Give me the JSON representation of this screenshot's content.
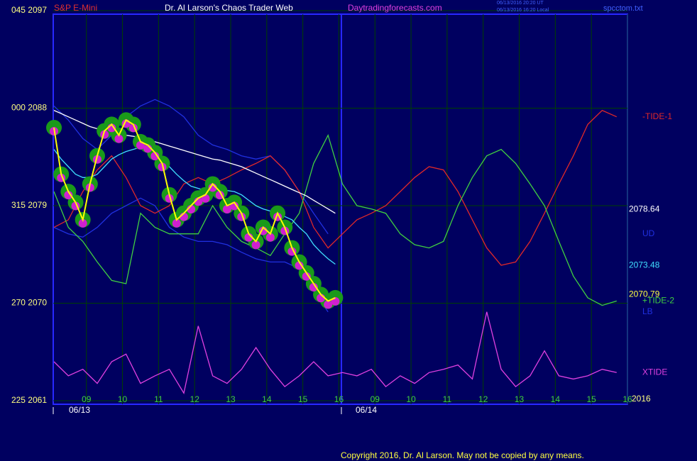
{
  "header": {
    "instrument": "S&P E-Mini",
    "title": "Dr. Al Larson's Chaos Trader Web",
    "site": "Daytradingforecasts.com",
    "time_ut": "06/13/2016 20:20 UT",
    "time_local": "06/13/2016 16:20 Local",
    "file": "spcctom.txt"
  },
  "footer": "Copyright 2016, Dr. Al Larson. May not be copied by any means.",
  "chart_data": {
    "type": "line",
    "grid": true,
    "xlim": [
      8.08,
      24.0
    ],
    "ylim": [
      2061,
      2097
    ],
    "yticks": [
      {
        "value": 2097,
        "label": "045  2097"
      },
      {
        "value": 2088,
        "label": "000  2088"
      },
      {
        "value": 2079,
        "label": "315  2079"
      },
      {
        "value": 2070,
        "label": "270  2070"
      },
      {
        "value": 2061,
        "label": "225  2061"
      }
    ],
    "xticks": [
      {
        "value": 9,
        "label": "09"
      },
      10,
      11,
      12,
      13,
      14,
      15,
      16,
      {
        "value": 17,
        "label": "09"
      },
      {
        "value": 18,
        "label": "10"
      },
      {
        "value": 19,
        "label": "11"
      },
      {
        "value": 20,
        "label": "12"
      },
      {
        "value": 21,
        "label": "13"
      },
      {
        "value": 22,
        "label": "14"
      },
      {
        "value": 23,
        "label": "15"
      },
      {
        "value": 24,
        "label": "16"
      }
    ],
    "date_labels": [
      "06/13",
      "06/14"
    ],
    "year_label": "2016",
    "last_values": [
      {
        "value": 2078.64,
        "color": "#ffffff"
      },
      {
        "value": 2073.48,
        "color": "#40e0ff"
      },
      {
        "value": 2070.79,
        "color": "#ffff40"
      }
    ],
    "series": [
      {
        "name": "UD",
        "color": "#2030e0",
        "x": [
          8.1,
          8.5,
          8.9,
          9.3,
          9.7,
          10.1,
          10.5,
          10.9,
          11.3,
          11.7,
          12.1,
          12.5,
          12.9,
          13.3,
          13.7,
          14.1,
          14.5,
          14.9,
          15.3,
          15.7
        ],
        "values": [
          2088.2,
          2086.9,
          2085.2,
          2084.2,
          2085.5,
          2087.2,
          2088.2,
          2088.8,
          2088.2,
          2087.2,
          2085.5,
          2084.6,
          2084.2,
          2083.6,
          2083.3,
          2083.6,
          2082.3,
          2080.3,
          2078.3,
          2076.4
        ]
      },
      {
        "name": "LB",
        "color": "#2030e0",
        "x": [
          8.1,
          8.5,
          8.9,
          9.3,
          9.7,
          10.1,
          10.5,
          10.9,
          11.3,
          11.7,
          12.1,
          12.5,
          12.9,
          13.3,
          13.7,
          14.1,
          14.5,
          14.9,
          15.3,
          15.7
        ],
        "values": [
          2077.0,
          2076.4,
          2076.1,
          2077.0,
          2078.3,
          2079.0,
          2079.7,
          2079.0,
          2077.0,
          2076.1,
          2075.7,
          2075.7,
          2075.4,
          2074.7,
          2074.1,
          2073.8,
          2073.8,
          2073.2,
          2071.1,
          2069.2
        ]
      },
      {
        "name": "-TIDE-1",
        "color": "#e02828",
        "x": [
          8.1,
          8.5,
          8.9,
          9.3,
          9.7,
          10.1,
          10.5,
          10.9,
          11.3,
          11.7,
          12.1,
          12.5,
          12.9,
          13.3,
          13.7,
          14.1,
          14.5,
          14.9,
          15.3,
          15.7,
          16.1,
          16.5,
          16.9,
          17.3,
          17.7,
          18.1,
          18.5,
          18.9,
          19.3,
          19.7,
          20.1,
          20.5,
          20.9,
          21.3,
          21.7,
          22.1,
          22.5,
          22.9,
          23.3,
          23.7
        ],
        "values": [
          2077.0,
          2077.7,
          2080.3,
          2082.3,
          2083.6,
          2081.6,
          2079.0,
          2078.3,
          2079.0,
          2081.0,
          2081.6,
          2081.0,
          2081.6,
          2082.3,
          2082.9,
          2083.6,
          2082.3,
          2080.3,
          2077.0,
          2075.1,
          2076.4,
          2077.7,
          2078.3,
          2079.0,
          2080.3,
          2081.6,
          2082.6,
          2082.3,
          2080.3,
          2077.7,
          2075.1,
          2073.5,
          2073.8,
          2075.7,
          2078.3,
          2081.0,
          2083.6,
          2086.5,
          2087.8,
          2087.2
        ]
      },
      {
        "name": "+TIDE-2",
        "color": "#40d040",
        "x": [
          8.1,
          8.5,
          8.9,
          9.3,
          9.7,
          10.1,
          10.5,
          10.9,
          11.3,
          11.7,
          12.1,
          12.5,
          12.9,
          13.3,
          13.7,
          14.1,
          14.5,
          14.9,
          15.3,
          15.7,
          16.1,
          16.5,
          16.9,
          17.3,
          17.7,
          18.1,
          18.5,
          18.9,
          19.3,
          19.7,
          20.1,
          20.5,
          20.9,
          21.3,
          21.7,
          22.1,
          22.5,
          22.9,
          23.3,
          23.7
        ],
        "values": [
          2080.3,
          2077.0,
          2075.7,
          2073.8,
          2072.1,
          2071.8,
          2078.3,
          2077.0,
          2076.4,
          2076.4,
          2076.4,
          2079.0,
          2077.0,
          2075.7,
          2075.1,
          2074.4,
          2076.4,
          2078.3,
          2082.9,
          2085.5,
          2081.0,
          2079.0,
          2078.7,
          2078.3,
          2076.4,
          2075.4,
          2075.1,
          2075.7,
          2079.0,
          2081.6,
          2083.6,
          2084.2,
          2082.9,
          2081.0,
          2079.0,
          2075.7,
          2072.5,
          2070.5,
          2069.8,
          2070.2
        ]
      },
      {
        "name": "XTIDE",
        "color": "#e040e0",
        "x": [
          8.1,
          8.5,
          8.9,
          9.3,
          9.7,
          10.1,
          10.5,
          10.9,
          11.3,
          11.7,
          12.1,
          12.5,
          12.9,
          13.3,
          13.7,
          14.1,
          14.5,
          14.9,
          15.3,
          15.7,
          16.1,
          16.5,
          16.9,
          17.3,
          17.7,
          18.1,
          18.5,
          18.9,
          19.3,
          19.7,
          20.1,
          20.5,
          20.9,
          21.3,
          21.7,
          22.1,
          22.5,
          22.9,
          23.3,
          23.7
        ],
        "values": [
          2064.6,
          2063.3,
          2063.9,
          2062.6,
          2064.6,
          2065.3,
          2062.6,
          2063.3,
          2063.9,
          2061.7,
          2067.9,
          2063.3,
          2062.6,
          2063.9,
          2065.9,
          2063.9,
          2062.3,
          2063.3,
          2064.6,
          2063.3,
          2063.6,
          2063.3,
          2063.9,
          2062.3,
          2063.3,
          2062.6,
          2063.6,
          2063.9,
          2064.3,
          2063.0,
          2069.2,
          2063.9,
          2062.3,
          2063.3,
          2065.6,
          2063.3,
          2063.0,
          2063.3,
          2063.9,
          2063.6
        ]
      },
      {
        "color": "#ffffff",
        "x": [
          8.1,
          8.3,
          8.5,
          8.7,
          8.9,
          9.1,
          9.3,
          9.5,
          9.7,
          9.9,
          10.1,
          10.3,
          10.5,
          10.7,
          10.9,
          11.1,
          11.3,
          11.5,
          11.7,
          11.9,
          12.1,
          12.3,
          12.5,
          12.7,
          12.9,
          13.1,
          13.3,
          13.5,
          13.7,
          13.9,
          14.1,
          14.3,
          14.5,
          14.7,
          14.9,
          15.1,
          15.3,
          15.5,
          15.7,
          15.9
        ],
        "values": [
          2087.8,
          2087.5,
          2087.2,
          2086.9,
          2086.6,
          2086.3,
          2086.1,
          2085.9,
          2085.7,
          2085.6,
          2085.5,
          2085.4,
          2085.3,
          2085.1,
          2084.9,
          2084.7,
          2084.5,
          2084.3,
          2084.1,
          2083.9,
          2083.7,
          2083.5,
          2083.3,
          2083.2,
          2083.0,
          2082.8,
          2082.6,
          2082.3,
          2082.0,
          2081.7,
          2081.4,
          2081.1,
          2080.8,
          2080.5,
          2080.2,
          2079.9,
          2079.5,
          2079.1,
          2078.7,
          2078.3
        ]
      },
      {
        "color": "#40e0ff",
        "x": [
          8.1,
          8.3,
          8.5,
          8.7,
          8.9,
          9.1,
          9.3,
          9.5,
          9.7,
          9.9,
          10.1,
          10.3,
          10.5,
          10.7,
          10.9,
          11.1,
          11.3,
          11.5,
          11.7,
          11.9,
          12.1,
          12.3,
          12.5,
          12.7,
          12.9,
          13.1,
          13.3,
          13.5,
          13.7,
          13.9,
          14.1,
          14.3,
          14.5,
          14.7,
          14.9,
          15.1,
          15.3,
          15.5,
          15.7,
          15.9
        ],
        "values": [
          2084.2,
          2083.3,
          2082.6,
          2081.9,
          2081.6,
          2081.6,
          2081.9,
          2082.6,
          2083.3,
          2083.7,
          2084.0,
          2084.2,
          2084.4,
          2084.2,
          2083.9,
          2083.3,
          2082.6,
          2081.9,
          2081.3,
          2080.8,
          2080.6,
          2080.4,
          2080.3,
          2080.4,
          2080.4,
          2080.3,
          2080.0,
          2079.5,
          2079.0,
          2078.7,
          2078.5,
          2078.3,
          2078.0,
          2077.7,
          2077.0,
          2076.4,
          2075.4,
          2074.7,
          2074.1,
          2073.6
        ]
      },
      {
        "color": "#ffff00",
        "markers": true,
        "x": [
          8.1,
          8.3,
          8.5,
          8.7,
          8.9,
          9.1,
          9.3,
          9.5,
          9.7,
          9.9,
          10.1,
          10.3,
          10.5,
          10.7,
          10.9,
          11.1,
          11.3,
          11.5,
          11.7,
          11.9,
          12.1,
          12.3,
          12.5,
          12.7,
          12.9,
          13.1,
          13.3,
          13.5,
          13.7,
          13.9,
          14.1,
          14.3,
          14.5,
          14.7,
          14.9,
          15.1,
          15.3,
          15.5,
          15.7,
          15.9
        ],
        "values": [
          2086.2,
          2081.9,
          2080.3,
          2079.3,
          2077.7,
          2081.0,
          2083.6,
          2085.9,
          2086.5,
          2085.5,
          2086.9,
          2086.5,
          2084.9,
          2084.6,
          2083.9,
          2082.9,
          2080.0,
          2077.7,
          2078.3,
          2079.0,
          2079.7,
          2080.0,
          2081.0,
          2080.3,
          2079.0,
          2079.3,
          2078.3,
          2076.4,
          2075.7,
          2077.0,
          2076.4,
          2078.3,
          2077.0,
          2075.1,
          2073.8,
          2072.8,
          2071.8,
          2070.8,
          2070.2,
          2070.5
        ]
      }
    ]
  }
}
